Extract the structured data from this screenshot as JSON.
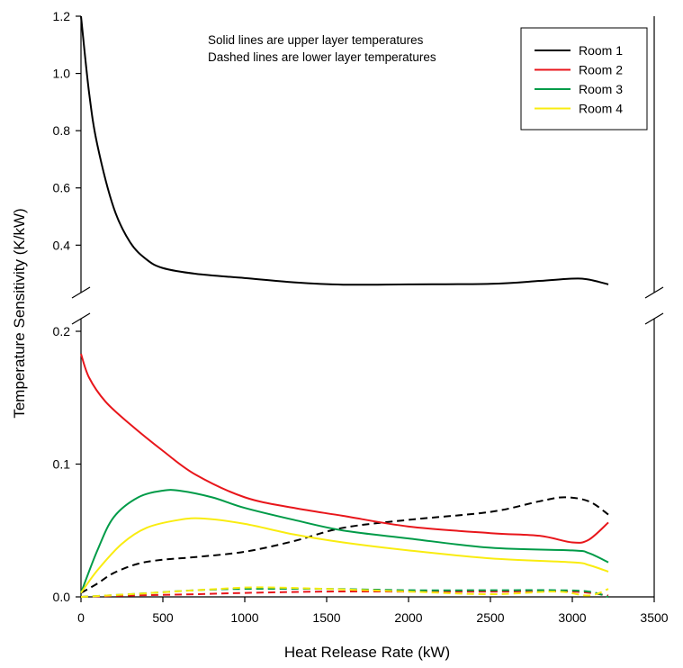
{
  "chart_data": {
    "type": "line",
    "xlabel": "Heat Release Rate (kW)",
    "ylabel": "Temperature Sensitivity (K/kW)",
    "xlim": [
      0,
      3500
    ],
    "x_ticks": [
      "0",
      "500",
      "1000",
      "1500",
      "2000",
      "2500",
      "3000",
      "3500"
    ],
    "broken_y_axis": true,
    "upper_panel": {
      "ylim": [
        0.25,
        1.2
      ],
      "y_ticks": [
        "0.4",
        "0.6",
        "0.8",
        "1.0",
        "1.2"
      ]
    },
    "lower_panel": {
      "ylim": [
        0,
        0.2
      ],
      "y_ticks": [
        "0.0",
        "0.1",
        "0.2"
      ]
    },
    "annotations": [
      "Solid lines are upper layer temperatures",
      "Dashed lines are lower layer temperatures"
    ],
    "legend_position": "top-right",
    "series": [
      {
        "name": "Room 1",
        "layer": "upper",
        "style": "solid",
        "color": "#000000",
        "panel": "upper",
        "x": [
          0,
          50,
          100,
          200,
          300,
          400,
          500,
          700,
          1000,
          1300,
          1600,
          2000,
          2500,
          2800,
          3000,
          3100,
          3220
        ],
        "y": [
          1.2,
          0.93,
          0.75,
          0.53,
          0.41,
          0.35,
          0.32,
          0.3,
          0.285,
          0.27,
          0.262,
          0.263,
          0.265,
          0.275,
          0.283,
          0.28,
          0.263
        ]
      },
      {
        "name": "Room 1",
        "layer": "lower",
        "style": "dashed",
        "color": "#000000",
        "panel": "lower",
        "x": [
          0,
          100,
          200,
          350,
          500,
          700,
          1000,
          1300,
          1600,
          2000,
          2500,
          2800,
          2950,
          3100,
          3220
        ],
        "y": [
          0.003,
          0.01,
          0.018,
          0.025,
          0.028,
          0.03,
          0.034,
          0.042,
          0.052,
          0.058,
          0.064,
          0.072,
          0.075,
          0.072,
          0.062
        ]
      },
      {
        "name": "Room 2",
        "layer": "upper",
        "style": "solid",
        "color": "#e8161b",
        "panel": "lower",
        "x": [
          0,
          50,
          150,
          300,
          500,
          700,
          1000,
          1300,
          1600,
          2000,
          2500,
          2800,
          3000,
          3100,
          3220
        ],
        "y": [
          0.183,
          0.165,
          0.147,
          0.13,
          0.11,
          0.092,
          0.075,
          0.067,
          0.061,
          0.053,
          0.048,
          0.046,
          0.041,
          0.043,
          0.056
        ]
      },
      {
        "name": "Room 2",
        "layer": "lower",
        "style": "dashed",
        "color": "#e8161b",
        "panel": "lower",
        "x": [
          0,
          300,
          700,
          1000,
          1500,
          2000,
          2500,
          3000,
          3220
        ],
        "y": [
          0,
          0.001,
          0.002,
          0.003,
          0.004,
          0.004,
          0.004,
          0.004,
          0.001
        ]
      },
      {
        "name": "Room 3",
        "layer": "upper",
        "style": "solid",
        "color": "#009b48",
        "panel": "lower",
        "x": [
          0,
          100,
          200,
          350,
          500,
          600,
          800,
          1000,
          1300,
          1600,
          2000,
          2500,
          3000,
          3100,
          3220
        ],
        "y": [
          0.003,
          0.035,
          0.06,
          0.075,
          0.08,
          0.08,
          0.075,
          0.067,
          0.058,
          0.05,
          0.044,
          0.037,
          0.035,
          0.033,
          0.026
        ]
      },
      {
        "name": "Room 3",
        "layer": "lower",
        "style": "dashed",
        "color": "#009b48",
        "panel": "lower",
        "x": [
          0,
          300,
          700,
          1000,
          1500,
          2000,
          2500,
          2900,
          3100,
          3220
        ],
        "y": [
          0,
          0.002,
          0.005,
          0.006,
          0.006,
          0.005,
          0.005,
          0.005,
          0.004,
          0
        ]
      },
      {
        "name": "Room 4",
        "layer": "upper",
        "style": "solid",
        "color": "#f9ec10",
        "panel": "lower",
        "x": [
          0,
          100,
          250,
          400,
          600,
          750,
          1000,
          1300,
          1600,
          2000,
          2500,
          3000,
          3100,
          3220
        ],
        "y": [
          0.003,
          0.02,
          0.04,
          0.052,
          0.058,
          0.059,
          0.055,
          0.047,
          0.041,
          0.035,
          0.029,
          0.026,
          0.024,
          0.019
        ]
      },
      {
        "name": "Room 4",
        "layer": "lower",
        "style": "dashed",
        "color": "#f9ec10",
        "panel": "lower",
        "x": [
          0,
          300,
          700,
          1000,
          1200,
          1500,
          2000,
          2500,
          2900,
          3100,
          3220
        ],
        "y": [
          0,
          0.002,
          0.005,
          0.007,
          0.007,
          0.006,
          0.004,
          0.002,
          0.004,
          0.001,
          0.006
        ]
      }
    ]
  }
}
